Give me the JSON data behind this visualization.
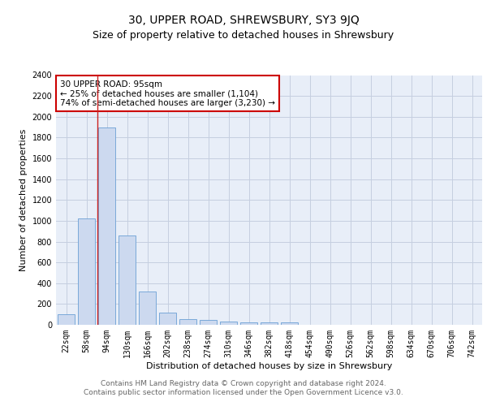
{
  "title": "30, UPPER ROAD, SHREWSBURY, SY3 9JQ",
  "subtitle": "Size of property relative to detached houses in Shrewsbury",
  "xlabel": "Distribution of detached houses by size in Shrewsbury",
  "ylabel": "Number of detached properties",
  "bin_labels": [
    "22sqm",
    "58sqm",
    "94sqm",
    "130sqm",
    "166sqm",
    "202sqm",
    "238sqm",
    "274sqm",
    "310sqm",
    "346sqm",
    "382sqm",
    "418sqm",
    "454sqm",
    "490sqm",
    "526sqm",
    "562sqm",
    "598sqm",
    "634sqm",
    "670sqm",
    "706sqm",
    "742sqm"
  ],
  "bar_values": [
    100,
    1020,
    1900,
    860,
    320,
    120,
    55,
    45,
    35,
    25,
    20,
    20,
    0,
    0,
    0,
    0,
    0,
    0,
    0,
    0,
    0
  ],
  "bar_color": "#ccd9ef",
  "bar_edge_color": "#6b9fd4",
  "grid_color": "#c5cfe0",
  "bg_color": "#e8eef8",
  "red_line_index": 2,
  "annotation_text": "30 UPPER ROAD: 95sqm\n← 25% of detached houses are smaller (1,104)\n74% of semi-detached houses are larger (3,230) →",
  "annotation_box_color": "#ffffff",
  "annotation_box_edge": "#cc0000",
  "ylim": [
    0,
    2400
  ],
  "yticks": [
    0,
    200,
    400,
    600,
    800,
    1000,
    1200,
    1400,
    1600,
    1800,
    2000,
    2200,
    2400
  ],
  "footer_text": "Contains HM Land Registry data © Crown copyright and database right 2024.\nContains public sector information licensed under the Open Government Licence v3.0.",
  "title_fontsize": 10,
  "subtitle_fontsize": 9,
  "xlabel_fontsize": 8,
  "ylabel_fontsize": 8,
  "tick_fontsize": 7,
  "annotation_fontsize": 7.5,
  "footer_fontsize": 6.5
}
